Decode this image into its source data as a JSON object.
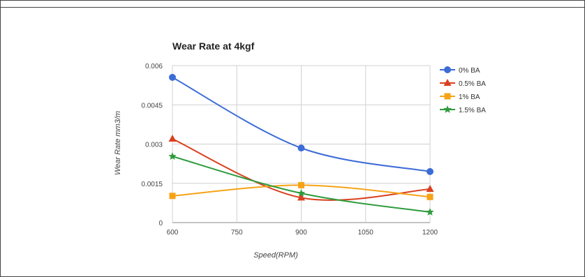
{
  "chart_data": {
    "type": "line",
    "title": "Wear Rate at 4kgf",
    "xlabel": "Speed(RPM)",
    "ylabel": "Wear Rate mm3/m",
    "x": [
      600,
      900,
      1200
    ],
    "x_ticks": [
      "600",
      "750",
      "900",
      "1050",
      "1200"
    ],
    "x_tick_values": [
      600,
      750,
      900,
      1050,
      1200
    ],
    "y_ticks": [
      "0",
      "0.0015",
      "0.003",
      "0.0045",
      "0.006"
    ],
    "y_tick_values": [
      0,
      0.0015,
      0.003,
      0.0045,
      0.006
    ],
    "xlim": [
      600,
      1200
    ],
    "ylim": [
      0,
      0.006
    ],
    "grid": true,
    "legend_position": "right",
    "series": [
      {
        "name": "0% BA",
        "color": "#3c6cd6",
        "marker": "circle",
        "values": [
          0.00555,
          0.00285,
          0.00195
        ]
      },
      {
        "name": "0.5% BA",
        "color": "#d9401f",
        "marker": "triangle",
        "values": [
          0.0032,
          0.00095,
          0.00128
        ]
      },
      {
        "name": "1% BA",
        "color": "#f6a316",
        "marker": "square",
        "values": [
          0.00102,
          0.00143,
          0.00098
        ]
      },
      {
        "name": "1.5% BA",
        "color": "#2e9b3c",
        "marker": "star",
        "values": [
          0.00253,
          0.00112,
          0.0004
        ]
      }
    ]
  }
}
